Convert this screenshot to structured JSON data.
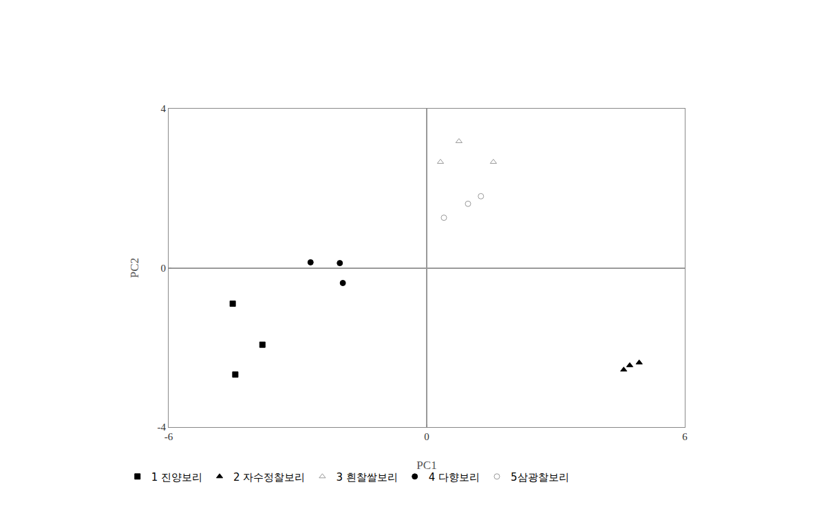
{
  "chart_data": {
    "type": "scatter",
    "x_label": "PC1",
    "y_label": "PC2",
    "xlim": [
      -6,
      6
    ],
    "xticks": [
      -6,
      0,
      6
    ],
    "ylim": [
      -4,
      4
    ],
    "yticks": [
      -4,
      0,
      4
    ],
    "grid": false,
    "legend": "bottom",
    "series": [
      {
        "name": "1 진양보리",
        "color": "#000000",
        "marker": "square",
        "x": [
          -4.51,
          -3.82,
          -4.45
        ],
        "values": [
          -0.9,
          -1.93,
          -2.68
        ]
      },
      {
        "name": "2 자수정찰보리",
        "color": "#000000",
        "marker": "triangle-up",
        "x": [
          4.58,
          4.72,
          4.94
        ],
        "values": [
          -2.56,
          -2.45,
          -2.38
        ]
      },
      {
        "name": "3 흰찰쌀보리",
        "color": "#999999",
        "marker": "triangle-up-open",
        "x": [
          0.32,
          0.75,
          1.55
        ],
        "values": [
          2.66,
          3.18,
          2.66
        ]
      },
      {
        "name": "4 다향보리",
        "color": "#000000",
        "marker": "circle",
        "x": [
          -2.7,
          -2.02,
          -1.95
        ],
        "values": [
          0.14,
          0.12,
          -0.38
        ]
      },
      {
        "name": "5삼광찰보리",
        "color": "#999999",
        "marker": "circle-open",
        "x": [
          0.4,
          0.96,
          1.26
        ],
        "values": [
          1.26,
          1.61,
          1.8
        ]
      }
    ]
  }
}
